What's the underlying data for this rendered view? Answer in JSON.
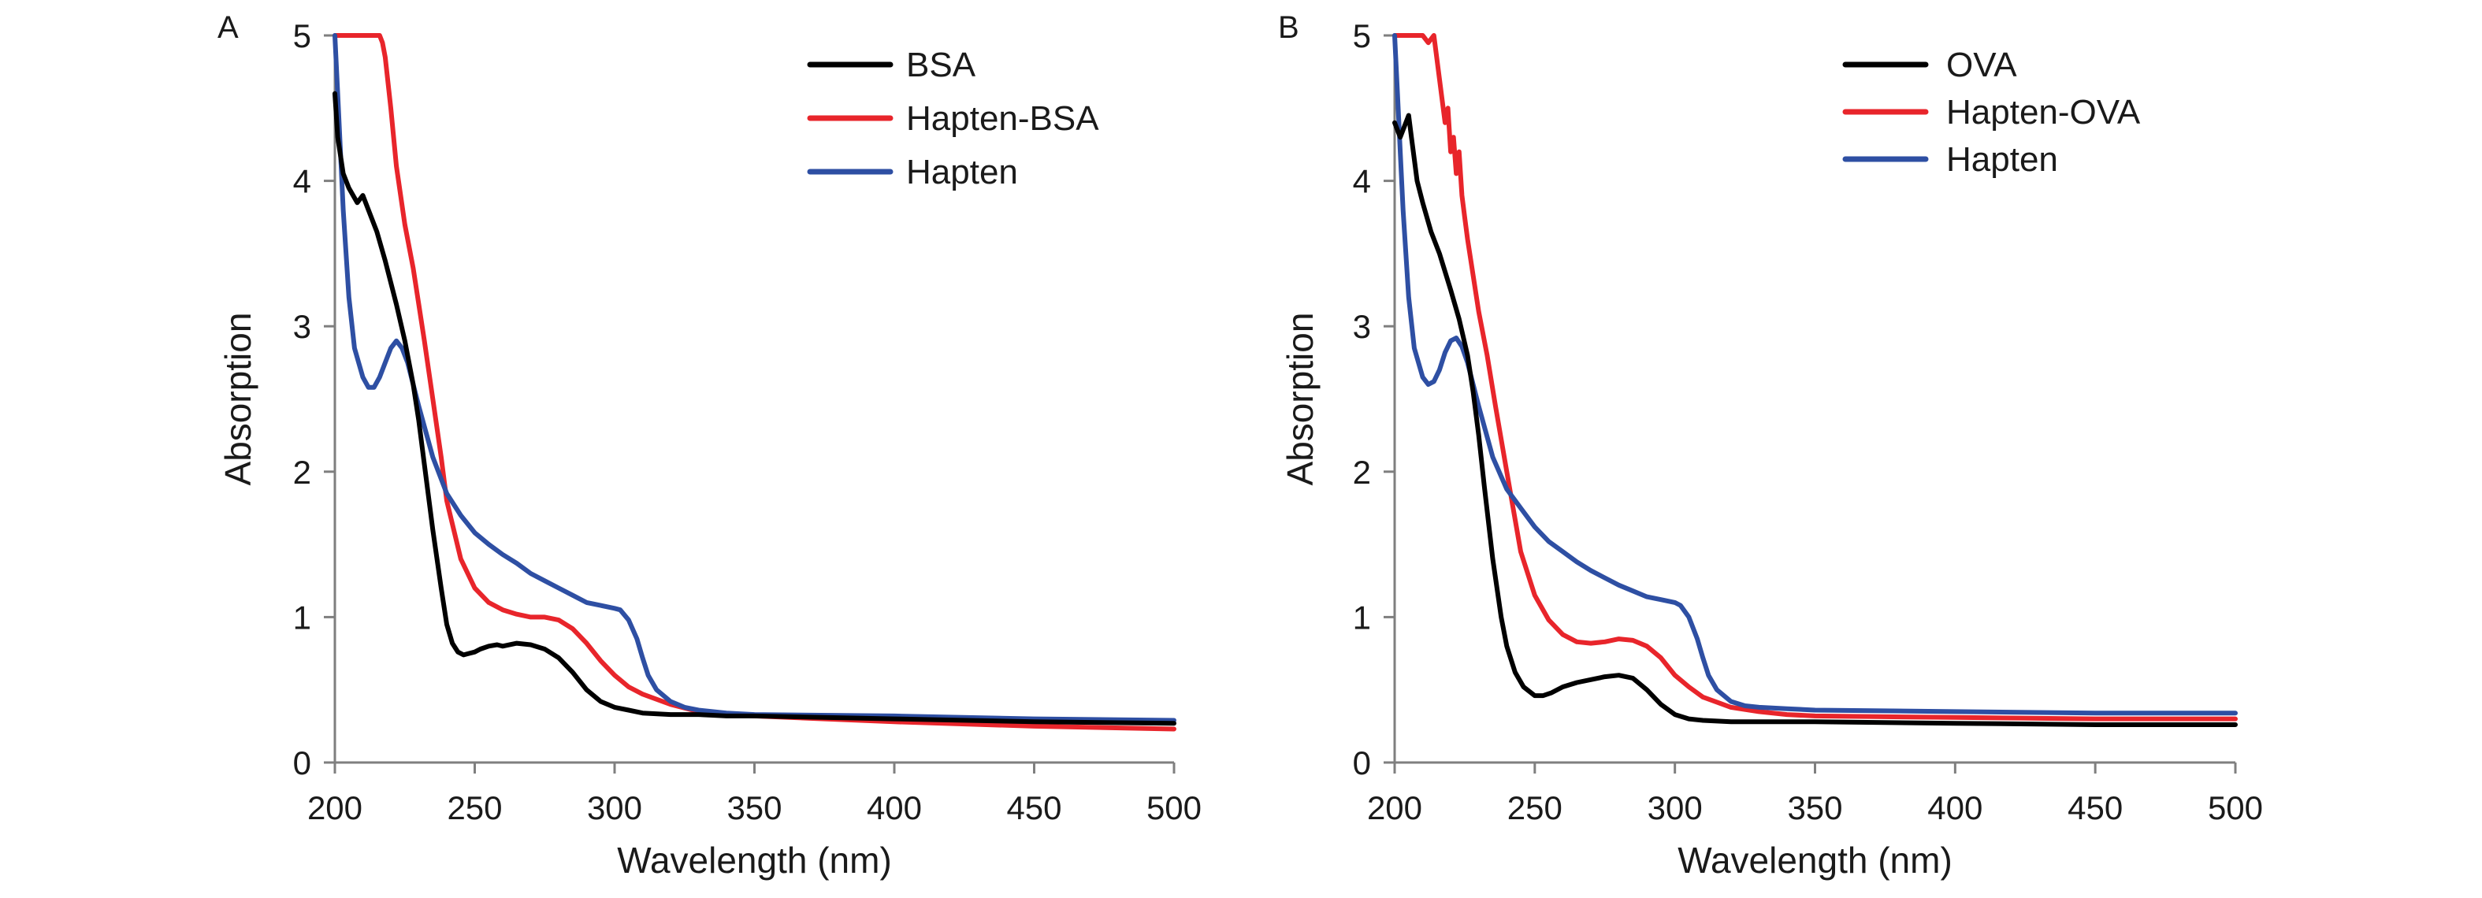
{
  "chart_data": [
    {
      "panel": "A",
      "type": "line",
      "xlabel": "Wavelength (nm)",
      "ylabel": "Absorption",
      "xlim": [
        200,
        500
      ],
      "ylim": [
        0,
        5
      ],
      "xticks": [
        200,
        250,
        300,
        350,
        400,
        450,
        500
      ],
      "yticks": [
        0,
        1,
        2,
        3,
        4,
        5
      ],
      "legend_position": "top-right",
      "series": [
        {
          "name": "BSA",
          "color": "#000000",
          "x": [
            200,
            201,
            203,
            205,
            208,
            210,
            212,
            215,
            218,
            220,
            222,
            225,
            228,
            230,
            232,
            235,
            238,
            240,
            242,
            244,
            246,
            248,
            250,
            252,
            255,
            258,
            260,
            265,
            270,
            275,
            280,
            285,
            290,
            295,
            300,
            305,
            310,
            320,
            330,
            340,
            350,
            400,
            450,
            500
          ],
          "y": [
            4.6,
            4.3,
            4.05,
            3.95,
            3.85,
            3.9,
            3.8,
            3.65,
            3.45,
            3.3,
            3.15,
            2.9,
            2.6,
            2.35,
            2.05,
            1.6,
            1.2,
            0.95,
            0.82,
            0.76,
            0.74,
            0.75,
            0.76,
            0.78,
            0.8,
            0.81,
            0.8,
            0.82,
            0.81,
            0.78,
            0.72,
            0.62,
            0.5,
            0.42,
            0.38,
            0.36,
            0.34,
            0.33,
            0.33,
            0.32,
            0.32,
            0.3,
            0.28,
            0.27
          ]
        },
        {
          "name": "Hapten-BSA",
          "color": "#e8252b",
          "x": [
            200,
            205,
            210,
            215,
            216,
            217,
            218,
            220,
            222,
            225,
            228,
            230,
            232,
            235,
            238,
            240,
            245,
            250,
            255,
            260,
            265,
            270,
            275,
            280,
            285,
            290,
            295,
            300,
            305,
            310,
            320,
            330,
            340,
            350,
            400,
            450,
            500
          ],
          "y": [
            5.0,
            5.0,
            5.0,
            5.0,
            5.0,
            4.95,
            4.85,
            4.5,
            4.1,
            3.7,
            3.4,
            3.15,
            2.9,
            2.5,
            2.1,
            1.8,
            1.4,
            1.2,
            1.1,
            1.05,
            1.02,
            1.0,
            1.0,
            0.98,
            0.92,
            0.82,
            0.7,
            0.6,
            0.52,
            0.47,
            0.4,
            0.35,
            0.33,
            0.32,
            0.28,
            0.25,
            0.23
          ]
        },
        {
          "name": "Hapten",
          "color": "#2e4fa3",
          "x": [
            200,
            201,
            202,
            203,
            205,
            207,
            210,
            212,
            214,
            216,
            218,
            220,
            222,
            224,
            226,
            228,
            230,
            235,
            240,
            245,
            250,
            255,
            260,
            265,
            270,
            275,
            280,
            285,
            290,
            295,
            300,
            302,
            305,
            308,
            310,
            312,
            315,
            320,
            325,
            330,
            340,
            350,
            400,
            450,
            500
          ],
          "y": [
            5.0,
            4.6,
            4.2,
            3.8,
            3.2,
            2.85,
            2.65,
            2.58,
            2.58,
            2.65,
            2.75,
            2.85,
            2.9,
            2.85,
            2.75,
            2.6,
            2.45,
            2.1,
            1.85,
            1.7,
            1.58,
            1.5,
            1.43,
            1.37,
            1.3,
            1.25,
            1.2,
            1.15,
            1.1,
            1.08,
            1.06,
            1.05,
            0.98,
            0.85,
            0.72,
            0.6,
            0.5,
            0.42,
            0.38,
            0.36,
            0.34,
            0.33,
            0.32,
            0.3,
            0.29
          ]
        }
      ]
    },
    {
      "panel": "B",
      "type": "line",
      "xlabel": "Wavelength (nm)",
      "ylabel": "Absorption",
      "xlim": [
        200,
        500
      ],
      "ylim": [
        0,
        5
      ],
      "xticks": [
        200,
        250,
        300,
        350,
        400,
        450,
        500
      ],
      "yticks": [
        0,
        1,
        2,
        3,
        4,
        5
      ],
      "legend_position": "top-right",
      "series": [
        {
          "name": "OVA",
          "color": "#000000",
          "x": [
            200,
            202,
            204,
            205,
            206,
            207,
            208,
            210,
            213,
            216,
            220,
            223,
            226,
            228,
            230,
            232,
            235,
            238,
            240,
            243,
            246,
            250,
            253,
            256,
            260,
            265,
            270,
            275,
            280,
            285,
            290,
            295,
            300,
            305,
            310,
            320,
            330,
            350,
            400,
            450,
            500
          ],
          "y": [
            4.4,
            4.3,
            4.4,
            4.45,
            4.3,
            4.15,
            4.0,
            3.85,
            3.65,
            3.5,
            3.25,
            3.05,
            2.8,
            2.55,
            2.25,
            1.9,
            1.4,
            1.0,
            0.8,
            0.62,
            0.52,
            0.46,
            0.46,
            0.48,
            0.52,
            0.55,
            0.57,
            0.59,
            0.6,
            0.58,
            0.5,
            0.4,
            0.33,
            0.3,
            0.29,
            0.28,
            0.28,
            0.28,
            0.27,
            0.26,
            0.26
          ]
        },
        {
          "name": "Hapten-OVA",
          "color": "#e8252b",
          "x": [
            200,
            205,
            210,
            212,
            214,
            216,
            218,
            219,
            220,
            221,
            222,
            223,
            224,
            225,
            226,
            228,
            230,
            233,
            236,
            240,
            245,
            250,
            255,
            260,
            265,
            270,
            275,
            280,
            285,
            290,
            295,
            300,
            305,
            310,
            320,
            330,
            340,
            350,
            400,
            450,
            500
          ],
          "y": [
            5.0,
            5.0,
            5.0,
            4.95,
            5.0,
            4.7,
            4.4,
            4.5,
            4.2,
            4.3,
            4.05,
            4.2,
            3.9,
            3.75,
            3.6,
            3.35,
            3.1,
            2.8,
            2.45,
            2.0,
            1.45,
            1.15,
            0.98,
            0.88,
            0.83,
            0.82,
            0.83,
            0.85,
            0.84,
            0.8,
            0.72,
            0.6,
            0.52,
            0.45,
            0.38,
            0.35,
            0.33,
            0.32,
            0.31,
            0.3,
            0.3
          ]
        },
        {
          "name": "Hapten",
          "color": "#2e4fa3",
          "x": [
            200,
            201,
            202,
            203,
            205,
            207,
            210,
            212,
            214,
            216,
            218,
            220,
            222,
            224,
            226,
            228,
            230,
            235,
            240,
            245,
            250,
            255,
            260,
            265,
            270,
            275,
            280,
            285,
            290,
            295,
            300,
            302,
            305,
            308,
            310,
            312,
            315,
            320,
            325,
            330,
            340,
            350,
            400,
            450,
            500
          ],
          "y": [
            5.0,
            4.6,
            4.2,
            3.8,
            3.2,
            2.85,
            2.65,
            2.6,
            2.62,
            2.7,
            2.82,
            2.9,
            2.92,
            2.86,
            2.75,
            2.6,
            2.45,
            2.1,
            1.88,
            1.75,
            1.62,
            1.52,
            1.45,
            1.38,
            1.32,
            1.27,
            1.22,
            1.18,
            1.14,
            1.12,
            1.1,
            1.08,
            1.0,
            0.85,
            0.72,
            0.6,
            0.5,
            0.42,
            0.39,
            0.38,
            0.37,
            0.36,
            0.35,
            0.34,
            0.34
          ]
        }
      ]
    }
  ]
}
